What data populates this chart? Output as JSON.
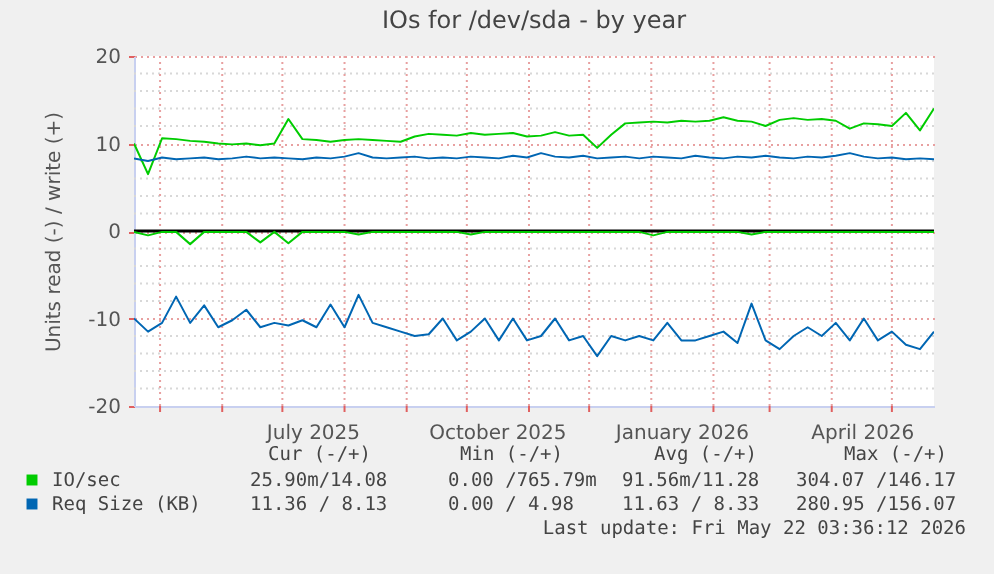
{
  "chart_data": {
    "type": "line",
    "title": "IOs for /dev/sda - by year",
    "ylabel": "Units read (-) / write (+)",
    "x": [
      "2025-04-18",
      "2025-04-25",
      "2025-05-02",
      "2025-05-09",
      "2025-05-16",
      "2025-05-23",
      "2025-05-30",
      "2025-06-06",
      "2025-06-13",
      "2025-06-20",
      "2025-06-27",
      "2025-07-04",
      "2025-07-11",
      "2025-07-18",
      "2025-07-25",
      "2025-08-01",
      "2025-08-08",
      "2025-08-15",
      "2025-08-22",
      "2025-08-29",
      "2025-09-05",
      "2025-09-12",
      "2025-09-19",
      "2025-09-26",
      "2025-10-03",
      "2025-10-10",
      "2025-10-17",
      "2025-10-24",
      "2025-10-31",
      "2025-11-07",
      "2025-11-14",
      "2025-11-21",
      "2025-11-28",
      "2025-12-05",
      "2025-12-12",
      "2025-12-19",
      "2025-12-26",
      "2026-01-02",
      "2026-01-09",
      "2026-01-16",
      "2026-01-23",
      "2026-01-30",
      "2026-02-06",
      "2026-02-13",
      "2026-02-20",
      "2026-02-27",
      "2026-03-06",
      "2026-03-13",
      "2026-03-20",
      "2026-03-27",
      "2026-04-03",
      "2026-04-10",
      "2026-04-17",
      "2026-04-24",
      "2026-05-01",
      "2026-05-08",
      "2026-05-15",
      "2026-05-22"
    ],
    "series": [
      {
        "name": "IO/sec",
        "color": "#00cc00",
        "values": [
          10.0,
          6.5,
          10.6,
          10.5,
          10.3,
          10.2,
          10.0,
          9.9,
          10.0,
          9.8,
          10.0,
          12.8,
          10.5,
          10.4,
          10.2,
          10.4,
          10.5,
          10.4,
          10.3,
          10.2,
          10.8,
          11.1,
          11.0,
          10.9,
          11.2,
          11.0,
          11.1,
          11.2,
          10.8,
          10.9,
          11.3,
          10.9,
          11.0,
          9.5,
          11.0,
          12.3,
          12.4,
          12.5,
          12.4,
          12.6,
          12.5,
          12.6,
          13.0,
          12.6,
          12.5,
          12.0,
          12.7,
          12.9,
          12.7,
          12.8,
          12.6,
          11.7,
          12.3,
          12.2,
          12.0,
          13.5,
          11.5,
          14.0
        ]
      },
      {
        "color": "#00cc00",
        "values": [
          -0.1,
          -0.5,
          -0.1,
          -0.1,
          -1.5,
          -0.1,
          -0.1,
          -0.1,
          -0.1,
          -1.3,
          -0.1,
          -1.4,
          -0.1,
          -0.1,
          -0.1,
          -0.1,
          -0.4,
          -0.1,
          -0.1,
          -0.1,
          -0.1,
          -0.1,
          -0.1,
          -0.1,
          -0.4,
          -0.1,
          -0.1,
          -0.1,
          -0.1,
          -0.1,
          -0.1,
          -0.1,
          -0.1,
          -0.1,
          -0.1,
          -0.1,
          -0.1,
          -0.5,
          -0.1,
          -0.1,
          -0.1,
          -0.1,
          -0.1,
          -0.1,
          -0.4,
          -0.1,
          -0.1,
          -0.1,
          -0.1,
          -0.1,
          -0.1,
          -0.1,
          -0.1,
          -0.1,
          -0.1,
          -0.1,
          -0.1,
          -0.1
        ]
      },
      {
        "name": "Req Size (KB)",
        "color": "#0066b3",
        "values": [
          8.3,
          8.0,
          8.4,
          8.2,
          8.3,
          8.4,
          8.2,
          8.3,
          8.5,
          8.3,
          8.4,
          8.3,
          8.2,
          8.4,
          8.3,
          8.5,
          8.9,
          8.4,
          8.3,
          8.4,
          8.5,
          8.3,
          8.4,
          8.3,
          8.5,
          8.4,
          8.3,
          8.6,
          8.4,
          8.9,
          8.5,
          8.4,
          8.6,
          8.3,
          8.4,
          8.5,
          8.3,
          8.5,
          8.4,
          8.3,
          8.6,
          8.4,
          8.3,
          8.5,
          8.4,
          8.6,
          8.4,
          8.3,
          8.5,
          8.4,
          8.6,
          8.9,
          8.5,
          8.3,
          8.4,
          8.2,
          8.3,
          8.2
        ]
      },
      {
        "color": "#0066b3",
        "values": [
          -10.0,
          -11.5,
          -10.5,
          -7.5,
          -10.5,
          -8.5,
          -11.0,
          -10.2,
          -9.0,
          -11.0,
          -10.5,
          -10.8,
          -10.2,
          -11.0,
          -8.4,
          -11.0,
          -7.3,
          -10.5,
          -11.0,
          -11.5,
          -12.0,
          -11.8,
          -10.0,
          -12.5,
          -11.5,
          -10.0,
          -12.5,
          -10.0,
          -12.5,
          -12.0,
          -10.0,
          -12.5,
          -12.0,
          -14.3,
          -12.0,
          -12.5,
          -12.0,
          -12.5,
          -10.5,
          -12.5,
          -12.5,
          -12.0,
          -11.5,
          -12.8,
          -8.3,
          -12.5,
          -13.5,
          -12.0,
          -11.0,
          -12.0,
          -10.5,
          -12.5,
          -10.0,
          -12.5,
          -11.5,
          -13.0,
          -13.5,
          -11.5
        ]
      }
    ],
    "xlim": [
      "2025-04-18",
      "2026-05-22"
    ],
    "xticks": [
      {
        "value": "2025-05-01",
        "label": null
      },
      {
        "value": "2025-06-01",
        "label": null
      },
      {
        "value": "2025-07-01",
        "label": null
      },
      {
        "value": "2025-07-16",
        "label": "July 2025"
      },
      {
        "value": "2025-08-01",
        "label": null
      },
      {
        "value": "2025-09-01",
        "label": null
      },
      {
        "value": "2025-10-01",
        "label": null
      },
      {
        "value": "2025-10-16",
        "label": "October 2025"
      },
      {
        "value": "2025-11-01",
        "label": null
      },
      {
        "value": "2025-12-01",
        "label": null
      },
      {
        "value": "2026-01-01",
        "label": null
      },
      {
        "value": "2026-01-16",
        "label": "January 2026"
      },
      {
        "value": "2026-02-01",
        "label": null
      },
      {
        "value": "2026-03-01",
        "label": null
      },
      {
        "value": "2026-04-01",
        "label": null
      },
      {
        "value": "2026-04-16",
        "label": "April 2026"
      },
      {
        "value": "2026-05-01",
        "label": null
      }
    ],
    "ylim": [
      -20,
      20
    ],
    "yticks": [
      -20,
      {
        "value": -18,
        "label": null
      },
      {
        "value": -16,
        "label": null
      },
      {
        "value": -14,
        "label": null
      },
      {
        "value": -12,
        "label": null
      },
      -10,
      {
        "value": -8,
        "label": null
      },
      {
        "value": -6,
        "label": null
      },
      {
        "value": -4,
        "label": null
      },
      {
        "value": -2,
        "label": null
      },
      0,
      {
        "value": 2,
        "label": null
      },
      {
        "value": 4,
        "label": null
      },
      {
        "value": 6,
        "label": null
      },
      {
        "value": 8,
        "label": null
      },
      10,
      {
        "value": 12,
        "label": null
      },
      {
        "value": 14,
        "label": null
      },
      {
        "value": 16,
        "label": null
      },
      {
        "value": 18,
        "label": null
      },
      20
    ],
    "grid": true,
    "ref_lines": [
      {
        "axis": "y",
        "value": 0,
        "color": "#000000"
      }
    ],
    "legend": "bottom",
    "annotations": [
      "Cur (-/+)",
      "Min (-/+)",
      "Avg (-/+)",
      "Max (-/+)",
      "25.90m/14.08",
      "0.00 /765.79m",
      "91.56m/11.28",
      "304.07 /146.17",
      "11.36 / 8.13",
      "0.00 / 4.98",
      "11.63 / 8.33",
      "280.95 /156.07",
      "Last update: Fri May 22 03:36:12 2026"
    ]
  }
}
